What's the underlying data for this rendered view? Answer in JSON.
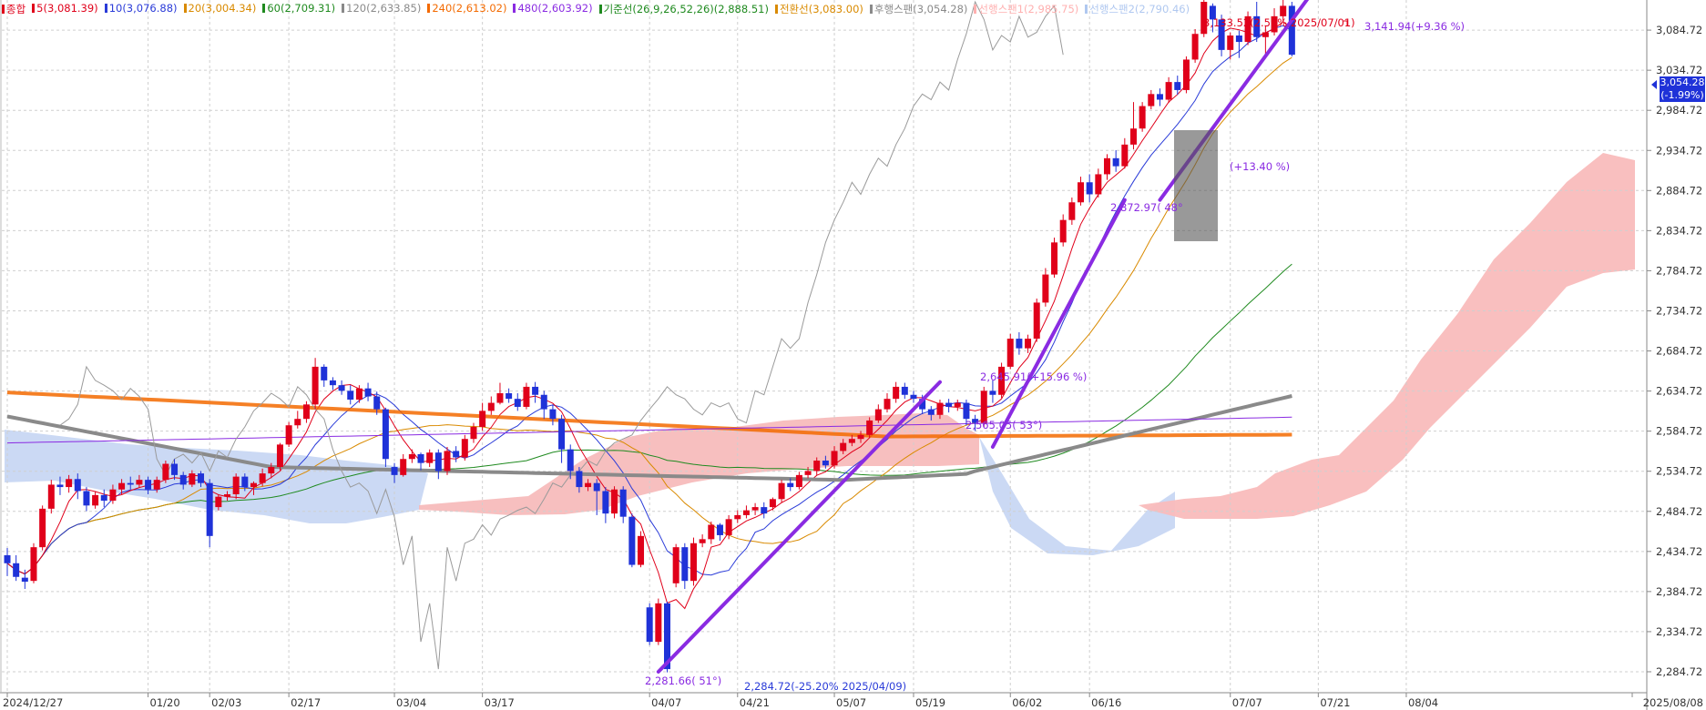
{
  "legend": [
    {
      "text": "종합",
      "color": "#e0001a"
    },
    {
      "text": "5(3,081.39)",
      "color": "#e0001a"
    },
    {
      "text": "10(3,076.88)",
      "color": "#2a3bd8"
    },
    {
      "text": "20(3,004.34)",
      "color": "#d98a00"
    },
    {
      "text": "60(2,709.31)",
      "color": "#1f8a1f"
    },
    {
      "text": "120(2,633.85)",
      "color": "#8a8a8a"
    },
    {
      "text": "240(2,613.02)",
      "color": "#f36a00"
    },
    {
      "text": "480(2,603.92)",
      "color": "#8a2be2"
    },
    {
      "text": "기준선(26,9,26,52,26)(2,888.51)",
      "color": "#1f8a1f"
    },
    {
      "text": "전환선(3,083.00)",
      "color": "#d98a00"
    },
    {
      "text": "후행스팬(3,054.28)",
      "color": "#8a8a8a"
    },
    {
      "text": "선행스팬1(2,985.75)",
      "color": "#ffb0b0"
    },
    {
      "text": "선행스팬2(2,790.46)",
      "color": "#b0c8f0"
    }
  ],
  "price_badge": {
    "value": "3,054.28",
    "change": "(-1.99%)"
  },
  "annotations": [
    {
      "id": "top",
      "text": "3,133.52(2.59% 2025/07/01)",
      "color": "#e0001a"
    },
    {
      "id": "trend_top",
      "text": "3,141.94(+9.36 %)",
      "color": "#8a2be2"
    },
    {
      "id": "low_angle",
      "text": "2,281.66( 51°)",
      "color": "#8a2be2"
    },
    {
      "id": "low",
      "text": "2,284.72(-25.20% 2025/04/09)",
      "color": "#2a3bd8"
    },
    {
      "id": "may_high",
      "text": "2,645.91(+15.96 %)",
      "color": "#8a2be2"
    },
    {
      "id": "may_low",
      "text": "2,565.05( 53°)",
      "color": "#8a2be2"
    },
    {
      "id": "jun_angle",
      "text": "2,872.97( 48°",
      "color": "#8a2be2"
    },
    {
      "id": "jun_pct",
      "text": "(+13.40 %)",
      "color": "#8a2be2"
    }
  ],
  "chart_data": {
    "type": "candlestick",
    "y_ticks": [
      "3,084.72",
      "3,034.72",
      "2,984.72",
      "2,934.72",
      "2,884.72",
      "2,834.72",
      "2,784.72",
      "2,734.72",
      "2,684.72",
      "2,634.72",
      "2,584.72",
      "2,534.72",
      "2,484.72",
      "2,434.72",
      "2,384.72",
      "2,334.72",
      "2,284.72"
    ],
    "y_tick_values": [
      3084.72,
      3034.72,
      2984.72,
      2934.72,
      2884.72,
      2834.72,
      2784.72,
      2734.72,
      2684.72,
      2634.72,
      2584.72,
      2534.72,
      2484.72,
      2434.72,
      2384.72,
      2334.72,
      2284.72
    ],
    "ylim": [
      2262,
      3120
    ],
    "x_ticks": [
      "2024/12/27",
      "01/20",
      "02/03",
      "02/17",
      "03/04",
      "03/17",
      "04/07",
      "04/21",
      "05/07",
      "05/19",
      "06/02",
      "06/16",
      "07/07",
      "07/21",
      "08/04",
      "2025/08/08"
    ],
    "x_tick_index": [
      0,
      16,
      23,
      32,
      44,
      54,
      73,
      83,
      94,
      103,
      114,
      123,
      139,
      149,
      159,
      163
    ],
    "last_price": 3054.28,
    "candles": [
      [
        2430,
        2420,
        2439,
        2404
      ],
      [
        2420,
        2403,
        2430,
        2398
      ],
      [
        2402,
        2397,
        2412,
        2388
      ],
      [
        2398,
        2440,
        2445,
        2395
      ],
      [
        2440,
        2488,
        2492,
        2436
      ],
      [
        2488,
        2518,
        2524,
        2482
      ],
      [
        2518,
        2515,
        2528,
        2505
      ],
      [
        2515,
        2525,
        2530,
        2508
      ],
      [
        2525,
        2510,
        2532,
        2500
      ],
      [
        2510,
        2492,
        2515,
        2485
      ],
      [
        2492,
        2505,
        2510,
        2488
      ],
      [
        2505,
        2498,
        2512,
        2490
      ],
      [
        2498,
        2512,
        2518,
        2494
      ],
      [
        2512,
        2520,
        2525,
        2506
      ],
      [
        2520,
        2518,
        2528,
        2512
      ],
      [
        2518,
        2524,
        2530,
        2514
      ],
      [
        2524,
        2512,
        2528,
        2506
      ],
      [
        2512,
        2524,
        2528,
        2508
      ],
      [
        2524,
        2544,
        2548,
        2520
      ],
      [
        2544,
        2530,
        2550,
        2524
      ],
      [
        2530,
        2518,
        2534,
        2512
      ],
      [
        2518,
        2532,
        2536,
        2515
      ],
      [
        2532,
        2520,
        2535,
        2515
      ],
      [
        2520,
        2454,
        2525,
        2440
      ],
      [
        2490,
        2503,
        2506,
        2486
      ],
      [
        2503,
        2506,
        2510,
        2498
      ],
      [
        2506,
        2528,
        2532,
        2500
      ],
      [
        2528,
        2515,
        2532,
        2510
      ],
      [
        2515,
        2520,
        2522,
        2505
      ],
      [
        2520,
        2532,
        2538,
        2516
      ],
      [
        2532,
        2540,
        2545,
        2526
      ],
      [
        2540,
        2568,
        2570,
        2536
      ],
      [
        2568,
        2592,
        2596,
        2565
      ],
      [
        2592,
        2600,
        2610,
        2588
      ],
      [
        2600,
        2618,
        2622,
        2595
      ],
      [
        2618,
        2665,
        2676,
        2612
      ],
      [
        2665,
        2648,
        2668,
        2640
      ],
      [
        2648,
        2642,
        2652,
        2636
      ],
      [
        2642,
        2635,
        2648,
        2630
      ],
      [
        2635,
        2624,
        2642,
        2618
      ],
      [
        2624,
        2638,
        2642,
        2620
      ],
      [
        2638,
        2628,
        2645,
        2622
      ],
      [
        2628,
        2612,
        2634,
        2605
      ],
      [
        2612,
        2550,
        2614,
        2540
      ],
      [
        2540,
        2530,
        2545,
        2520
      ],
      [
        2530,
        2550,
        2556,
        2528
      ],
      [
        2550,
        2556,
        2562,
        2545
      ],
      [
        2556,
        2545,
        2558,
        2536
      ],
      [
        2545,
        2558,
        2562,
        2540
      ],
      [
        2558,
        2535,
        2562,
        2525
      ],
      [
        2535,
        2560,
        2565,
        2530
      ],
      [
        2560,
        2552,
        2566,
        2546
      ],
      [
        2552,
        2575,
        2580,
        2548
      ],
      [
        2575,
        2590,
        2595,
        2570
      ],
      [
        2590,
        2610,
        2620,
        2585
      ],
      [
        2610,
        2620,
        2628,
        2605
      ],
      [
        2620,
        2632,
        2645,
        2618
      ],
      [
        2632,
        2625,
        2638,
        2620
      ],
      [
        2625,
        2615,
        2632,
        2610
      ],
      [
        2615,
        2640,
        2645,
        2612
      ],
      [
        2640,
        2630,
        2646,
        2620
      ],
      [
        2630,
        2612,
        2635,
        2600
      ],
      [
        2612,
        2600,
        2618,
        2592
      ],
      [
        2600,
        2562,
        2605,
        2545
      ],
      [
        2562,
        2535,
        2568,
        2525
      ],
      [
        2535,
        2515,
        2540,
        2508
      ],
      [
        2515,
        2520,
        2525,
        2510
      ],
      [
        2520,
        2510,
        2525,
        2480
      ],
      [
        2510,
        2482,
        2515,
        2470
      ],
      [
        2482,
        2512,
        2516,
        2476
      ],
      [
        2512,
        2478,
        2516,
        2470
      ],
      [
        2478,
        2418,
        2482,
        2415
      ],
      [
        2418,
        2454,
        2460,
        2415
      ],
      [
        2365,
        2322,
        2370,
        2318
      ],
      [
        2322,
        2370,
        2376,
        2318
      ],
      [
        2370,
        2288,
        2372,
        2284
      ],
      [
        2395,
        2440,
        2444,
        2390
      ],
      [
        2440,
        2398,
        2445,
        2388
      ],
      [
        2398,
        2445,
        2452,
        2392
      ],
      [
        2445,
        2450,
        2456,
        2440
      ],
      [
        2450,
        2468,
        2472,
        2444
      ],
      [
        2468,
        2455,
        2470,
        2448
      ],
      [
        2455,
        2475,
        2480,
        2450
      ],
      [
        2475,
        2480,
        2486,
        2470
      ],
      [
        2480,
        2486,
        2492,
        2476
      ],
      [
        2486,
        2490,
        2495,
        2480
      ],
      [
        2490,
        2482,
        2496,
        2476
      ],
      [
        2490,
        2500,
        2502,
        2486
      ],
      [
        2500,
        2520,
        2524,
        2496
      ],
      [
        2520,
        2515,
        2526,
        2510
      ],
      [
        2515,
        2530,
        2534,
        2512
      ],
      [
        2530,
        2535,
        2540,
        2526
      ],
      [
        2535,
        2548,
        2552,
        2530
      ],
      [
        2548,
        2542,
        2554,
        2538
      ],
      [
        2542,
        2560,
        2566,
        2538
      ],
      [
        2560,
        2570,
        2575,
        2556
      ],
      [
        2570,
        2575,
        2580,
        2566
      ],
      [
        2575,
        2580,
        2585,
        2570
      ],
      [
        2580,
        2598,
        2602,
        2576
      ],
      [
        2598,
        2612,
        2618,
        2595
      ],
      [
        2612,
        2625,
        2632,
        2608
      ],
      [
        2625,
        2640,
        2646,
        2620
      ],
      [
        2640,
        2630,
        2645,
        2625
      ],
      [
        2630,
        2625,
        2635,
        2620
      ],
      [
        2625,
        2612,
        2630,
        2606
      ],
      [
        2612,
        2605,
        2616,
        2598
      ],
      [
        2605,
        2620,
        2624,
        2600
      ],
      [
        2620,
        2615,
        2625,
        2608
      ],
      [
        2615,
        2620,
        2624,
        2610
      ],
      [
        2620,
        2600,
        2624,
        2592
      ],
      [
        2600,
        2595,
        2605,
        2585
      ],
      [
        2595,
        2635,
        2640,
        2590
      ],
      [
        2635,
        2630,
        2648,
        2620
      ],
      [
        2630,
        2665,
        2670,
        2626
      ],
      [
        2665,
        2700,
        2706,
        2662
      ],
      [
        2700,
        2688,
        2708,
        2680
      ],
      [
        2688,
        2700,
        2705,
        2682
      ],
      [
        2700,
        2745,
        2750,
        2696
      ],
      [
        2745,
        2780,
        2788,
        2740
      ],
      [
        2780,
        2820,
        2826,
        2776
      ],
      [
        2820,
        2848,
        2855,
        2815
      ],
      [
        2848,
        2870,
        2876,
        2842
      ],
      [
        2870,
        2895,
        2902,
        2866
      ],
      [
        2895,
        2880,
        2905,
        2870
      ],
      [
        2880,
        2905,
        2912,
        2876
      ],
      [
        2905,
        2925,
        2930,
        2898
      ],
      [
        2925,
        2915,
        2935,
        2908
      ],
      [
        2915,
        2942,
        2950,
        2912
      ],
      [
        2942,
        2962,
        2995,
        2936
      ],
      [
        2962,
        2990,
        2995,
        2958
      ],
      [
        2990,
        3005,
        3010,
        2986
      ],
      [
        3005,
        2998,
        3012,
        2990
      ],
      [
        2998,
        3020,
        3026,
        2994
      ],
      [
        3020,
        3010,
        3028,
        3004
      ],
      [
        3010,
        3048,
        3052,
        3006
      ],
      [
        3048,
        3080,
        3086,
        3044
      ],
      [
        3080,
        3120,
        3124,
        3076
      ],
      [
        3115,
        3098,
        3118,
        3082
      ],
      [
        3098,
        3060,
        3104,
        3052
      ],
      [
        3060,
        3078,
        3082,
        3048
      ],
      [
        3078,
        3070,
        3084,
        3050
      ],
      [
        3070,
        3102,
        3108,
        3066
      ],
      [
        3102,
        3076,
        3120,
        3070
      ],
      [
        3076,
        3082,
        3090,
        3050
      ],
      [
        3082,
        3102,
        3112,
        3078
      ],
      [
        3102,
        3115,
        3133,
        3096
      ],
      [
        3115,
        3054,
        3120,
        3052
      ]
    ],
    "trendlines": [
      {
        "name": "",
        "from": [
          74,
          2284.72
        ],
        "to": [
          106,
          2645.91
        ]
      },
      {
        "name": "",
        "from": [
          112,
          2565.05
        ],
        "to": [
          127,
          2872.97
        ]
      },
      {
        "name": "",
        "from": [
          131,
          2872.97
        ],
        "to": [
          149,
          3141.94
        ]
      }
    ]
  }
}
